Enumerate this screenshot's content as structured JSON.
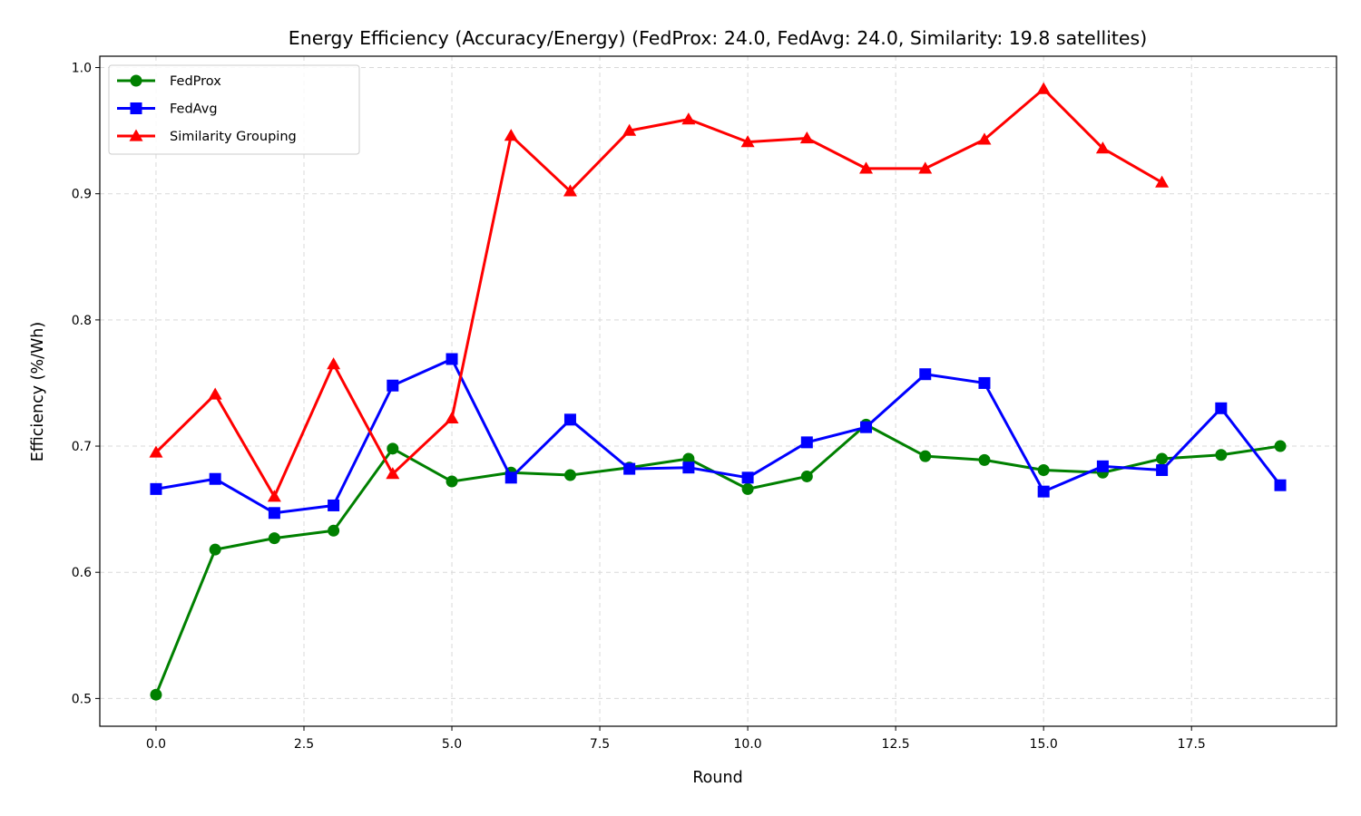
{
  "chart_data": {
    "type": "line",
    "title": "Energy Efficiency (Accuracy/Energy) (FedProx: 24.0, FedAvg: 24.0, Similarity: 19.8 satellites)",
    "xlabel": "Round",
    "ylabel": "Efficiency (%/Wh)",
    "xlim": [
      -0.95,
      19.95
    ],
    "ylim": [
      0.478,
      1.009
    ],
    "xticks": [
      0.0,
      2.5,
      5.0,
      7.5,
      10.0,
      12.5,
      15.0,
      17.5
    ],
    "xtick_labels": [
      "0.0",
      "2.5",
      "5.0",
      "7.5",
      "10.0",
      "12.5",
      "15.0",
      "17.5"
    ],
    "yticks": [
      0.5,
      0.6,
      0.7,
      0.8,
      0.9,
      1.0
    ],
    "ytick_labels": [
      "0.5",
      "0.6",
      "0.7",
      "0.8",
      "0.9",
      "1.0"
    ],
    "grid": true,
    "legend_position": "upper-left",
    "series": [
      {
        "name": "FedProx",
        "color": "#008000",
        "marker": "circle",
        "x": [
          0,
          1,
          2,
          3,
          4,
          5,
          6,
          7,
          8,
          9,
          10,
          11,
          12,
          13,
          14,
          15,
          16,
          17,
          18,
          19
        ],
        "values": [
          0.503,
          0.618,
          0.627,
          0.633,
          0.698,
          0.672,
          0.679,
          0.677,
          0.683,
          0.69,
          0.666,
          0.676,
          0.717,
          0.692,
          0.689,
          0.681,
          0.679,
          0.69,
          0.693,
          0.7
        ]
      },
      {
        "name": "FedAvg",
        "color": "#0000ff",
        "marker": "square",
        "x": [
          0,
          1,
          2,
          3,
          4,
          5,
          6,
          7,
          8,
          9,
          10,
          11,
          12,
          13,
          14,
          15,
          16,
          17,
          18,
          19
        ],
        "values": [
          0.666,
          0.674,
          0.647,
          0.653,
          0.748,
          0.769,
          0.675,
          0.721,
          0.682,
          0.683,
          0.675,
          0.703,
          0.715,
          0.757,
          0.75,
          0.664,
          0.684,
          0.681,
          0.73,
          0.669
        ]
      },
      {
        "name": "Similarity Grouping",
        "color": "#ff0000",
        "marker": "triangle",
        "x": [
          0,
          1,
          2,
          3,
          4,
          5,
          6,
          7,
          8,
          9,
          10,
          11,
          12,
          13,
          14,
          15,
          16,
          17
        ],
        "values": [
          0.695,
          0.741,
          0.66,
          0.765,
          0.678,
          0.722,
          0.946,
          0.902,
          0.95,
          0.959,
          0.941,
          0.944,
          0.92,
          0.92,
          0.943,
          0.983,
          0.936,
          0.909
        ]
      }
    ]
  }
}
